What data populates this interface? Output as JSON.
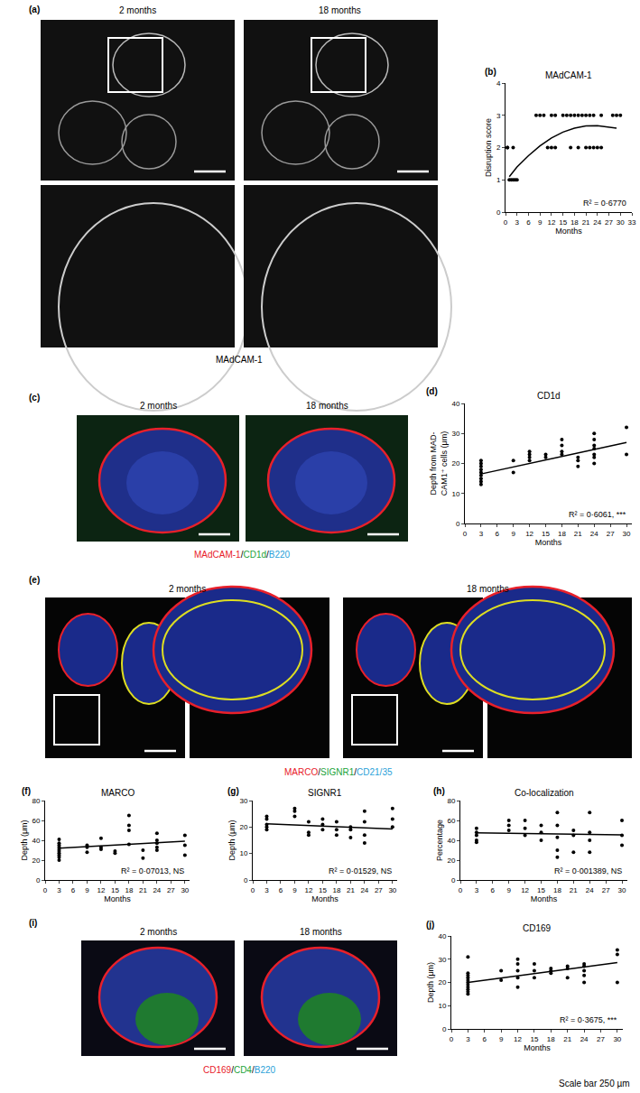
{
  "image_panels": [
    {
      "panel": "(a)",
      "titles": [
        "2 months",
        "18 months"
      ],
      "caption": [
        {
          "text": "MAdCAM-1",
          "color": "#000000"
        }
      ]
    },
    {
      "panel": "(c)",
      "titles": [
        "2 months",
        "18 months"
      ],
      "caption": [
        {
          "text": "MAdCAM-1",
          "color": "#e8202a"
        },
        {
          "text": "/",
          "color": "#000000"
        },
        {
          "text": "CD1d",
          "color": "#22a33a"
        },
        {
          "text": "/",
          "color": "#000000"
        },
        {
          "text": "B220",
          "color": "#2a9fd8"
        }
      ]
    },
    {
      "panel": "(e)",
      "titles": [
        "2 months",
        "18 months"
      ],
      "caption": [
        {
          "text": "MARCO",
          "color": "#e8202a"
        },
        {
          "text": "/",
          "color": "#000000"
        },
        {
          "text": "SIGNR1",
          "color": "#22a33a"
        },
        {
          "text": "/",
          "color": "#000000"
        },
        {
          "text": "CD21/35",
          "color": "#2a9fd8"
        }
      ]
    },
    {
      "panel": "(i)",
      "titles": [
        "2 months",
        "18 months"
      ],
      "caption": [
        {
          "text": "CD169",
          "color": "#e8202a"
        },
        {
          "text": "/",
          "color": "#000000"
        },
        {
          "text": "CD4",
          "color": "#22a33a"
        },
        {
          "text": "/",
          "color": "#000000"
        },
        {
          "text": "B220",
          "color": "#2a9fd8"
        }
      ]
    }
  ],
  "chart_data": [
    {
      "type": "scatter",
      "panel": "(b)",
      "title": "MAdCAM-1",
      "xlabel": "Months",
      "ylabel": [
        "Disruption score"
      ],
      "annotation": "R² = 0·6770",
      "grid": false,
      "xlim": [
        0,
        33
      ],
      "xticks": [
        0,
        3,
        6,
        9,
        12,
        15,
        18,
        21,
        24,
        27,
        30,
        33
      ],
      "ylim": [
        0,
        4
      ],
      "yticks": [
        0,
        1,
        2,
        3,
        4
      ],
      "series": [
        {
          "type": "scatter",
          "marker": "circle",
          "color": "#000000",
          "x": [
            0.5,
            1,
            1.5,
            2,
            2.5,
            3,
            0.5,
            2,
            8,
            9,
            10,
            11,
            12,
            12,
            13,
            13,
            15,
            16,
            17,
            17,
            18,
            19,
            19,
            20,
            21,
            21,
            22,
            22,
            23,
            23,
            24,
            25,
            25,
            28,
            29,
            30
          ],
          "values": [
            2,
            1,
            1,
            1,
            1,
            1,
            2,
            2,
            3,
            3,
            3,
            2,
            3,
            2,
            2,
            3,
            3,
            3,
            3,
            2,
            3,
            3,
            2,
            3,
            3,
            2,
            3,
            2,
            3,
            2,
            2,
            3,
            2,
            3,
            3,
            3
          ]
        },
        {
          "type": "line",
          "line_style": "solid",
          "color": "#000000",
          "x": [
            1,
            3,
            6,
            9,
            12,
            15,
            18,
            21,
            24,
            27,
            29
          ],
          "values": [
            1.1,
            1.4,
            1.75,
            2.05,
            2.3,
            2.48,
            2.6,
            2.67,
            2.68,
            2.64,
            2.6
          ]
        }
      ]
    },
    {
      "type": "scatter",
      "panel": "(d)",
      "title": "CD1d",
      "xlabel": "Months",
      "ylabel": [
        "Depth from MAD-",
        "CAM1⁺ cells (μm)"
      ],
      "annotation": "R² = 0·6061, ***",
      "grid": false,
      "xlim": [
        0,
        31
      ],
      "xticks": [
        0,
        3,
        6,
        9,
        12,
        15,
        18,
        21,
        24,
        27,
        30
      ],
      "ylim": [
        0,
        40
      ],
      "yticks": [
        0,
        10,
        20,
        30,
        40
      ],
      "series": [
        {
          "type": "scatter",
          "marker": "circle",
          "color": "#000000",
          "x": [
            3,
            3,
            3,
            3,
            3,
            3,
            3,
            3,
            3,
            9,
            9,
            12,
            12,
            12,
            12,
            15,
            15,
            18,
            18,
            18,
            18,
            21,
            21,
            21,
            24,
            24,
            24,
            24,
            24,
            24,
            24,
            30,
            30
          ],
          "values": [
            13,
            14,
            15,
            16,
            17,
            18,
            19,
            20,
            21,
            17,
            21,
            21,
            22,
            23,
            24,
            22,
            23,
            23,
            24,
            26,
            28,
            19,
            21,
            22,
            20,
            22,
            23,
            25,
            26,
            28,
            30,
            23,
            32
          ]
        },
        {
          "type": "line",
          "line_style": "solid",
          "color": "#000000",
          "x": [
            3,
            30
          ],
          "values": [
            16.5,
            27
          ]
        }
      ]
    },
    {
      "type": "scatter",
      "panel": "(f)",
      "title": "MARCO",
      "xlabel": "Months",
      "ylabel": [
        "Depth (μm)"
      ],
      "annotation": "R² = 0·07013, NS",
      "grid": false,
      "xlim": [
        0,
        31
      ],
      "xticks": [
        0,
        3,
        6,
        9,
        12,
        15,
        18,
        21,
        24,
        27,
        30
      ],
      "ylim": [
        0,
        80
      ],
      "yticks": [
        0,
        20,
        40,
        60,
        80
      ],
      "series": [
        {
          "type": "scatter",
          "marker": "circle",
          "color": "#000000",
          "x": [
            3,
            3,
            3,
            3,
            3,
            3,
            3,
            3,
            3,
            3,
            9,
            9,
            9,
            12,
            12,
            12,
            15,
            15,
            18,
            18,
            18,
            18,
            21,
            21,
            24,
            24,
            24,
            24,
            24,
            30,
            30,
            30
          ],
          "values": [
            20,
            23,
            25,
            27,
            29,
            31,
            33,
            35,
            37,
            41,
            28,
            33,
            35,
            31,
            33,
            42,
            27,
            29,
            36,
            50,
            55,
            65,
            22,
            30,
            30,
            33,
            37,
            40,
            47,
            25,
            35,
            45
          ]
        },
        {
          "type": "line",
          "line_style": "solid",
          "color": "#000000",
          "x": [
            3,
            30
          ],
          "values": [
            32,
            39
          ]
        }
      ]
    },
    {
      "type": "scatter",
      "panel": "(g)",
      "title": "SIGNR1",
      "xlabel": "Months",
      "ylabel": [
        "Depth (μm)"
      ],
      "annotation": "R² = 0·01529, NS",
      "grid": false,
      "xlim": [
        0,
        31
      ],
      "xticks": [
        0,
        3,
        6,
        9,
        12,
        15,
        18,
        21,
        24,
        27,
        30
      ],
      "ylim": [
        0,
        30
      ],
      "yticks": [
        0,
        10,
        20,
        30
      ],
      "series": [
        {
          "type": "scatter",
          "marker": "circle",
          "color": "#000000",
          "x": [
            3,
            3,
            3,
            3,
            3,
            9,
            9,
            9,
            12,
            12,
            12,
            15,
            15,
            15,
            18,
            18,
            18,
            21,
            21,
            21,
            24,
            24,
            24,
            24,
            30,
            30,
            30
          ],
          "values": [
            19,
            20,
            21,
            23,
            24,
            24,
            26,
            27,
            17,
            18,
            22,
            19,
            21,
            23,
            17,
            19,
            22,
            16,
            19,
            20,
            14,
            17,
            22,
            26,
            20,
            23,
            27
          ]
        },
        {
          "type": "line",
          "line_style": "solid",
          "color": "#000000",
          "x": [
            3,
            30
          ],
          "values": [
            21.2,
            19.3
          ]
        }
      ]
    },
    {
      "type": "scatter",
      "panel": "(h)",
      "title": "Co-localization",
      "xlabel": "Months",
      "ylabel": [
        "Percentage"
      ],
      "annotation": "R² = 0·001389, NS",
      "grid": false,
      "xlim": [
        0,
        31
      ],
      "xticks": [
        0,
        3,
        6,
        9,
        12,
        15,
        18,
        21,
        24,
        27,
        30
      ],
      "ylim": [
        0,
        80
      ],
      "yticks": [
        0,
        20,
        40,
        60,
        80
      ],
      "series": [
        {
          "type": "scatter",
          "marker": "circle",
          "color": "#000000",
          "x": [
            3,
            3,
            3,
            3,
            3,
            9,
            9,
            9,
            12,
            12,
            12,
            15,
            15,
            15,
            18,
            18,
            18,
            18,
            18,
            21,
            21,
            21,
            24,
            24,
            24,
            24,
            30,
            30,
            30
          ],
          "values": [
            38,
            40,
            45,
            48,
            52,
            50,
            55,
            60,
            45,
            52,
            60,
            40,
            48,
            55,
            23,
            30,
            43,
            55,
            68,
            28,
            45,
            50,
            28,
            40,
            48,
            68,
            35,
            45,
            60
          ]
        },
        {
          "type": "line",
          "line_style": "solid",
          "color": "#000000",
          "x": [
            3,
            30
          ],
          "values": [
            47.5,
            45.5
          ]
        }
      ]
    },
    {
      "type": "scatter",
      "panel": "(j)",
      "title": "CD169",
      "xlabel": "Months",
      "ylabel": [
        "Depth (μm)"
      ],
      "annotation": "R² = 0·3675, ***",
      "grid": false,
      "xlim": [
        0,
        31
      ],
      "xticks": [
        0,
        3,
        6,
        9,
        12,
        15,
        18,
        21,
        24,
        27,
        30
      ],
      "ylim": [
        0,
        40
      ],
      "yticks": [
        0,
        10,
        20,
        30,
        40
      ],
      "series": [
        {
          "type": "scatter",
          "marker": "circle",
          "color": "#000000",
          "x": [
            3,
            3,
            3,
            3,
            3,
            3,
            3,
            3,
            3,
            3,
            3,
            9,
            9,
            12,
            12,
            12,
            12,
            12,
            15,
            15,
            15,
            18,
            18,
            18,
            21,
            21,
            21,
            24,
            24,
            24,
            24,
            24,
            30,
            30,
            30
          ],
          "values": [
            15,
            16,
            17,
            18,
            19,
            20,
            21,
            22,
            23,
            24,
            31,
            21,
            25,
            18,
            22,
            25,
            28,
            30,
            22,
            25,
            28,
            24,
            25,
            26,
            22,
            26,
            27,
            20,
            23,
            25,
            27,
            28,
            20,
            32,
            34
          ]
        },
        {
          "type": "line",
          "line_style": "solid",
          "color": "#000000",
          "x": [
            3,
            30
          ],
          "values": [
            20,
            28.5
          ]
        }
      ]
    }
  ],
  "footer": "Scale bar 250 µm"
}
